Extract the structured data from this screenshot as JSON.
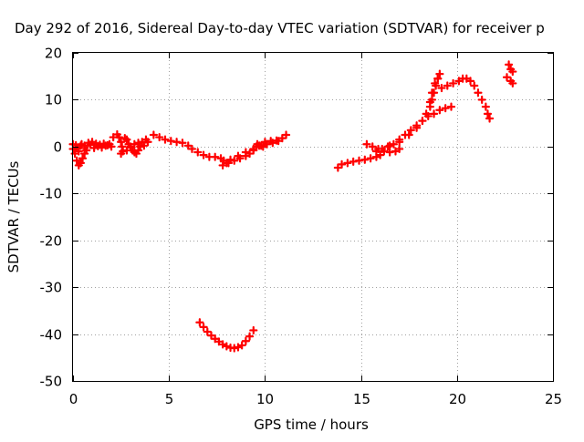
{
  "chart_data": {
    "type": "scatter",
    "title": "Day 292 of 2016, Sidereal Day-to-day VTEC variation (SDTVAR) for receiver p",
    "xlabel": "GPS time / hours",
    "ylabel": "SDTVAR / TECUs",
    "xlim": [
      0,
      25
    ],
    "ylim": [
      -50,
      20
    ],
    "xticks": [
      0,
      5,
      10,
      15,
      20,
      25
    ],
    "yticks": [
      20,
      10,
      0,
      -10,
      -20,
      -30,
      -40,
      -50
    ],
    "grid": true,
    "marker": "+",
    "color": "#ff0000",
    "series": [
      {
        "values": [
          [
            0.0,
            -0.5
          ],
          [
            0.15,
            0.3
          ],
          [
            0.3,
            -1.0
          ],
          [
            0.45,
            0.5
          ],
          [
            0.6,
            0.2
          ],
          [
            0.8,
            0.8
          ],
          [
            1.0,
            1.0
          ],
          [
            1.2,
            0.6
          ],
          [
            1.4,
            0.4
          ],
          [
            1.6,
            0.6
          ],
          [
            1.8,
            0.3
          ],
          [
            2.0,
            0.0
          ],
          [
            0.1,
            -1.5
          ],
          [
            0.2,
            -3.0
          ],
          [
            0.3,
            -4.0
          ],
          [
            0.4,
            -3.5
          ],
          [
            0.5,
            -2.5
          ],
          [
            0.6,
            -1.5
          ],
          [
            0.7,
            -0.8
          ],
          [
            0.0,
            0.5
          ],
          [
            0.2,
            -0.2
          ],
          [
            0.4,
            0.2
          ],
          [
            0.6,
            -0.3
          ],
          [
            0.9,
            0.4
          ],
          [
            1.1,
            -0.3
          ],
          [
            1.3,
            0.1
          ],
          [
            1.5,
            -0.2
          ],
          [
            1.7,
            0.2
          ],
          [
            1.9,
            0.5
          ],
          [
            2.1,
            2.0
          ],
          [
            2.3,
            2.6
          ],
          [
            2.4,
            2.0
          ],
          [
            2.5,
            1.0
          ],
          [
            2.55,
            0.0
          ],
          [
            2.6,
            -1.0
          ],
          [
            2.5,
            -1.5
          ],
          [
            2.7,
            1.8
          ],
          [
            2.8,
            1.5
          ],
          [
            2.9,
            0.5
          ],
          [
            3.0,
            0.0
          ],
          [
            3.1,
            -0.8
          ],
          [
            3.2,
            -1.2
          ],
          [
            3.3,
            -1.5
          ],
          [
            3.4,
            -0.8
          ],
          [
            3.5,
            0.0
          ],
          [
            2.8,
            -0.8
          ],
          [
            3.0,
            -0.2
          ],
          [
            3.2,
            0.5
          ],
          [
            3.4,
            0.8
          ],
          [
            3.6,
            1.0
          ],
          [
            3.8,
            1.5
          ],
          [
            3.9,
            1.0
          ],
          [
            3.7,
            0.2
          ],
          [
            4.2,
            2.5
          ],
          [
            4.5,
            2.0
          ],
          [
            4.8,
            1.5
          ],
          [
            5.1,
            1.2
          ],
          [
            5.4,
            1.0
          ],
          [
            5.7,
            0.8
          ],
          [
            6.0,
            0.2
          ],
          [
            6.2,
            -0.5
          ],
          [
            6.5,
            -1.2
          ],
          [
            6.8,
            -1.8
          ],
          [
            7.1,
            -2.2
          ],
          [
            7.4,
            -2.2
          ],
          [
            7.7,
            -2.5
          ],
          [
            7.85,
            -3.0
          ],
          [
            8.0,
            -3.5
          ],
          [
            7.8,
            -4.0
          ],
          [
            8.1,
            -3.5
          ],
          [
            8.4,
            -3.0
          ],
          [
            8.7,
            -2.5
          ],
          [
            9.0,
            -2.0
          ],
          [
            9.2,
            -1.5
          ],
          [
            9.4,
            -0.8
          ],
          [
            9.55,
            0.0
          ],
          [
            9.7,
            0.2
          ],
          [
            9.9,
            0.0
          ],
          [
            8.2,
            -2.8
          ],
          [
            8.6,
            -2.0
          ],
          [
            9.0,
            -1.2
          ],
          [
            9.4,
            -0.5
          ],
          [
            9.8,
            0.2
          ],
          [
            10.1,
            0.5
          ],
          [
            10.4,
            0.8
          ],
          [
            10.7,
            1.2
          ],
          [
            10.9,
            1.8
          ],
          [
            11.1,
            2.5
          ],
          [
            9.6,
            0.5
          ],
          [
            10.0,
            1.0
          ],
          [
            10.3,
            1.2
          ],
          [
            10.6,
            1.3
          ],
          [
            6.6,
            -37.5
          ],
          [
            6.8,
            -38.5
          ],
          [
            7.0,
            -39.5
          ],
          [
            7.2,
            -40.3
          ],
          [
            7.4,
            -41.0
          ],
          [
            7.6,
            -41.6
          ],
          [
            7.8,
            -42.2
          ],
          [
            8.0,
            -42.6
          ],
          [
            8.2,
            -42.9
          ],
          [
            8.4,
            -43.0
          ],
          [
            8.6,
            -42.8
          ],
          [
            8.8,
            -42.4
          ],
          [
            9.0,
            -41.5
          ],
          [
            9.2,
            -40.5
          ],
          [
            9.4,
            -39.2
          ],
          [
            13.8,
            -4.5
          ],
          [
            14.0,
            -3.8
          ],
          [
            14.3,
            -3.5
          ],
          [
            14.6,
            -3.2
          ],
          [
            14.9,
            -3.0
          ],
          [
            15.2,
            -2.8
          ],
          [
            15.5,
            -2.5
          ],
          [
            15.8,
            -2.2
          ],
          [
            16.0,
            -1.8
          ],
          [
            15.3,
            0.5
          ],
          [
            15.6,
            0.0
          ],
          [
            15.9,
            -0.5
          ],
          [
            16.2,
            -1.0
          ],
          [
            16.5,
            -1.2
          ],
          [
            16.8,
            -1.0
          ],
          [
            17.0,
            -0.5
          ],
          [
            15.8,
            -1.0
          ],
          [
            16.1,
            -0.5
          ],
          [
            16.4,
            0.0
          ],
          [
            16.7,
            0.5
          ],
          [
            17.0,
            1.5
          ],
          [
            17.3,
            2.5
          ],
          [
            17.6,
            3.5
          ],
          [
            17.9,
            4.5
          ],
          [
            18.2,
            5.5
          ],
          [
            18.5,
            6.5
          ],
          [
            18.8,
            7.0
          ],
          [
            19.1,
            7.8
          ],
          [
            19.4,
            8.2
          ],
          [
            19.7,
            8.5
          ],
          [
            16.5,
            0.2
          ],
          [
            17.0,
            1.0
          ],
          [
            17.5,
            2.5
          ],
          [
            17.9,
            4.0
          ],
          [
            18.2,
            5.5
          ],
          [
            18.4,
            7.0
          ],
          [
            18.6,
            8.5
          ],
          [
            18.7,
            10.0
          ],
          [
            18.8,
            11.5
          ],
          [
            18.9,
            13.0
          ],
          [
            19.0,
            14.5
          ],
          [
            19.1,
            15.5
          ],
          [
            18.6,
            9.5
          ],
          [
            18.7,
            11.5
          ],
          [
            18.85,
            13.5
          ],
          [
            19.0,
            14.5
          ],
          [
            19.2,
            12.5
          ],
          [
            19.5,
            13.0
          ],
          [
            19.8,
            13.5
          ],
          [
            20.1,
            14.0
          ],
          [
            20.3,
            14.5
          ],
          [
            20.5,
            14.5
          ],
          [
            20.7,
            14.0
          ],
          [
            20.9,
            13.0
          ],
          [
            21.1,
            11.5
          ],
          [
            21.3,
            10.0
          ],
          [
            21.5,
            8.5
          ],
          [
            21.6,
            7.0
          ],
          [
            21.7,
            6.0
          ],
          [
            22.7,
            17.5
          ],
          [
            22.8,
            16.5
          ],
          [
            22.9,
            16.0
          ],
          [
            22.6,
            14.8
          ],
          [
            22.8,
            14.0
          ],
          [
            22.9,
            13.5
          ]
        ]
      }
    ]
  }
}
